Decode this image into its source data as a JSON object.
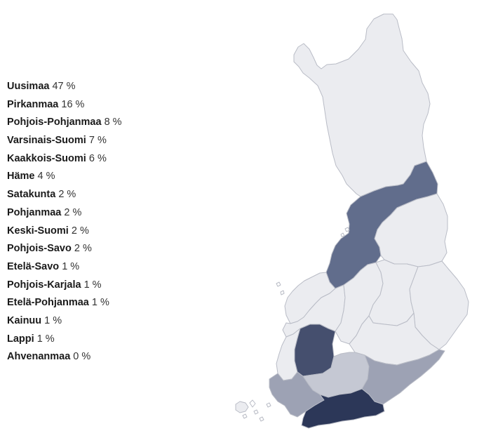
{
  "legend": {
    "items": [
      {
        "region": "Uusimaa",
        "value": "47 %"
      },
      {
        "region": "Pirkanmaa",
        "value": "16 %"
      },
      {
        "region": "Pohjois-Pohjanmaa",
        "value": "8 %"
      },
      {
        "region": "Varsinais-Suomi",
        "value": "7 %"
      },
      {
        "region": "Kaakkois-Suomi",
        "value": "6 %"
      },
      {
        "region": "Häme",
        "value": "4 %"
      },
      {
        "region": "Satakunta",
        "value": "2 %"
      },
      {
        "region": "Pohjanmaa",
        "value": "2 %"
      },
      {
        "region": "Keski-Suomi",
        "value": "2 %"
      },
      {
        "region": "Pohjois-Savo",
        "value": "2 %"
      },
      {
        "region": "Etelä-Savo",
        "value": "1 %"
      },
      {
        "region": "Pohjois-Karjala",
        "value": "1 %"
      },
      {
        "region": "Etelä-Pohjanmaa",
        "value": "1 %"
      },
      {
        "region": "Kainuu",
        "value": "1 %"
      },
      {
        "region": "Lappi",
        "value": "1 %"
      },
      {
        "region": "Ahvenanmaa",
        "value": "0 %"
      }
    ]
  },
  "colors": {
    "background": "#ffffff",
    "region_border": "#b9bcc6",
    "scale": {
      "base": "#ebecf0",
      "light": "#c5c8d3",
      "mid": "#9da2b4",
      "dark": "#616d8c",
      "darker": "#454f6e",
      "darkest": "#2c3758"
    }
  },
  "map_regions": [
    {
      "region": "Lappi",
      "shade": "base"
    },
    {
      "region": "Pohjois-Pohjanmaa",
      "shade": "dark"
    },
    {
      "region": "Kainuu",
      "shade": "base"
    },
    {
      "region": "Pohjanmaa",
      "shade": "base"
    },
    {
      "region": "Etelä-Pohjanmaa",
      "shade": "base"
    },
    {
      "region": "Keski-Suomi",
      "shade": "base"
    },
    {
      "region": "Pohjois-Savo",
      "shade": "base"
    },
    {
      "region": "Pohjois-Karjala",
      "shade": "base"
    },
    {
      "region": "Etelä-Savo",
      "shade": "base"
    },
    {
      "region": "Satakunta",
      "shade": "base"
    },
    {
      "region": "Pirkanmaa",
      "shade": "darker"
    },
    {
      "region": "Häme",
      "shade": "light"
    },
    {
      "region": "Kaakkois-Suomi",
      "shade": "mid"
    },
    {
      "region": "Varsinais-Suomi",
      "shade": "mid"
    },
    {
      "region": "Uusimaa",
      "shade": "darkest"
    },
    {
      "region": "Ahvenanmaa",
      "shade": "base"
    }
  ]
}
